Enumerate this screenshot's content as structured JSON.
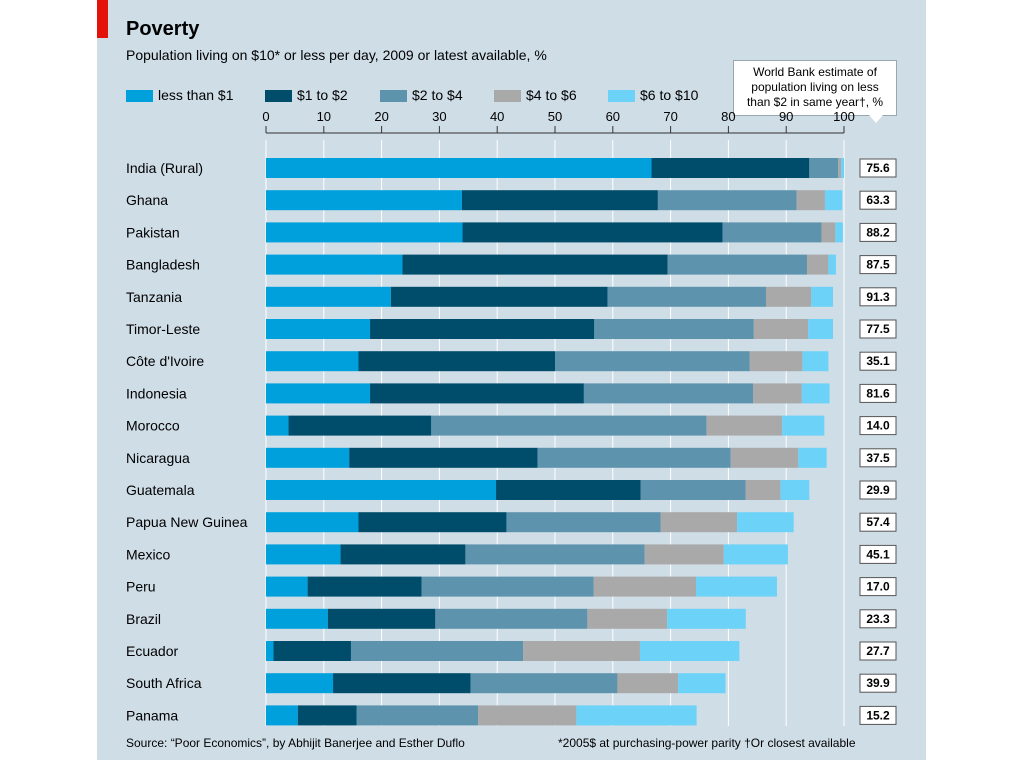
{
  "header": {
    "title": "Poverty",
    "subtitle": "Population living on $10* or less per day, 2009 or latest available, %"
  },
  "callout": {
    "line1": "World Bank estimate of",
    "line2": "population living on less",
    "line3": "than $2 in same year†, %"
  },
  "footer": {
    "source": "Source: “Poor Economics”, by Abhijit Banerjee and Esther Duflo",
    "footnote": "*2005$ at purchasing-power parity    †Or closest available"
  },
  "colors": {
    "background": "#cfdde7",
    "accent": "#e3120b",
    "series": [
      "#00a0dc",
      "#004c6b",
      "#5d93ad",
      "#a9a9a9",
      "#6dd2f7"
    ]
  },
  "chart_data": {
    "type": "bar",
    "orientation": "horizontal",
    "stacked": true,
    "categories": [
      "India (Rural)",
      "Ghana",
      "Pakistan",
      "Bangladesh",
      "Tanzania",
      "Timor-Leste",
      "Côte d'Ivoire",
      "Indonesia",
      "Morocco",
      "Nicaragua",
      "Guatemala",
      "Papua New Guinea",
      "Mexico",
      "Peru",
      "Brazil",
      "Ecuador",
      "South Africa",
      "Panama"
    ],
    "series": [
      {
        "name": "less than $1",
        "color": "#00a0dc",
        "values": [
          66.7,
          33.9,
          34.0,
          23.6,
          21.6,
          18.0,
          16.0,
          18.0,
          3.9,
          14.4,
          39.8,
          16.0,
          12.9,
          7.2,
          10.7,
          1.3,
          11.6,
          5.5
        ]
      },
      {
        "name": "$1 to $2",
        "color": "#004c6b",
        "values": [
          27.3,
          33.9,
          45.0,
          45.9,
          37.5,
          38.8,
          34.0,
          37.0,
          24.7,
          32.6,
          25.0,
          25.6,
          21.6,
          19.7,
          18.6,
          13.4,
          23.8,
          10.2
        ]
      },
      {
        "name": "$2 to $4",
        "color": "#5d93ad",
        "values": [
          5.0,
          24.0,
          17.1,
          24.1,
          27.4,
          27.6,
          33.7,
          29.3,
          47.6,
          33.4,
          18.2,
          26.7,
          31.0,
          29.8,
          26.3,
          29.8,
          25.4,
          21.0
        ]
      },
      {
        "name": "$4 to $6",
        "color": "#a9a9a9",
        "values": [
          0.5,
          4.9,
          2.4,
          3.7,
          7.8,
          9.4,
          9.1,
          8.4,
          13.1,
          11.7,
          6.0,
          13.2,
          13.7,
          17.7,
          13.8,
          20.2,
          10.5,
          17.0
        ]
      },
      {
        "name": "$6 to $10",
        "color": "#6dd2f7",
        "values": [
          0.5,
          3.0,
          1.3,
          1.3,
          3.8,
          4.3,
          4.5,
          4.8,
          7.3,
          4.9,
          5.0,
          9.8,
          11.1,
          14.0,
          13.6,
          17.2,
          8.2,
          20.8
        ]
      }
    ],
    "world_bank_under_2": [
      "75.6",
      "63.3",
      "88.2",
      "87.5",
      "91.3",
      "77.5",
      "35.1",
      "81.6",
      "14.0",
      "37.5",
      "29.9",
      "57.4",
      "45.1",
      "17.0",
      "23.3",
      "27.7",
      "39.9",
      "15.2"
    ],
    "xticks": [
      "0",
      "10",
      "20",
      "30",
      "40",
      "50",
      "60",
      "70",
      "80",
      "90",
      "100"
    ],
    "xlim": [
      0,
      100
    ],
    "grid": true,
    "legend_position": "top"
  }
}
